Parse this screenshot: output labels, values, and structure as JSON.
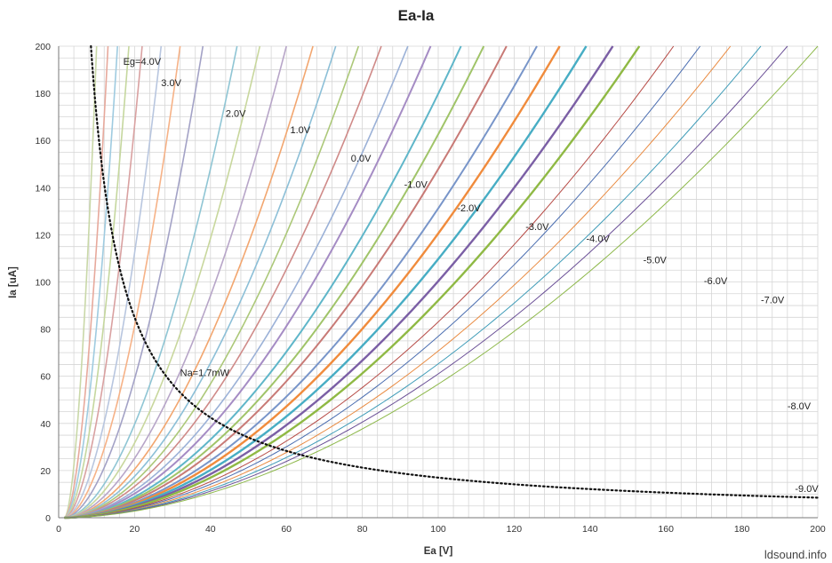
{
  "chart_data": {
    "type": "line",
    "title": "Ea-Ia",
    "xlabel": "Ea [V]",
    "ylabel": "Ia [uA]",
    "xlim": [
      0,
      200
    ],
    "ylim": [
      0,
      200
    ],
    "xticks": [
      0,
      20,
      40,
      60,
      80,
      100,
      120,
      140,
      160,
      180,
      200
    ],
    "yticks": [
      0,
      20,
      40,
      60,
      80,
      100,
      120,
      140,
      160,
      180,
      200
    ],
    "x_minor_step": 4,
    "y_minor_step": 5,
    "grid": true,
    "legend": "none",
    "curve_shape": {
      "exponent": 1.8,
      "onset_offset_v": 1.5
    },
    "series": [
      {
        "eg": 5.5,
        "color": "#c9d8a8",
        "width": 1.6,
        "x_at_200": 10
      },
      {
        "eg": 5.0,
        "color": "#e7a99c",
        "width": 1.6,
        "x_at_200": 13
      },
      {
        "eg": 4.5,
        "color": "#9fcbe0",
        "width": 1.6,
        "x_at_200": 15.5
      },
      {
        "eg": 4.0,
        "color": "#c5d79e",
        "width": 1.6,
        "x_at_200": 18.5
      },
      {
        "eg": 3.5,
        "color": "#d9a1a1",
        "width": 1.6,
        "x_at_200": 22
      },
      {
        "eg": 3.0,
        "color": "#b8c6df",
        "width": 1.6,
        "x_at_200": 27
      },
      {
        "eg": 2.5,
        "color": "#f6b287",
        "width": 1.6,
        "x_at_200": 32
      },
      {
        "eg": 2.0,
        "color": "#a3a2c6",
        "width": 1.6,
        "x_at_200": 38
      },
      {
        "eg": 1.5,
        "color": "#8fc5d4",
        "width": 1.6,
        "x_at_200": 47
      },
      {
        "eg": 1.0,
        "color": "#c8d79d",
        "width": 1.6,
        "x_at_200": 53
      },
      {
        "eg": 0.5,
        "color": "#b7a5c8",
        "width": 1.6,
        "x_at_200": 60
      },
      {
        "eg": 0.0,
        "color": "#f2a66f",
        "width": 1.6,
        "x_at_200": 67
      },
      {
        "eg": -0.5,
        "color": "#8cbfd7",
        "width": 1.6,
        "x_at_200": 73
      },
      {
        "eg": -1.0,
        "color": "#acc879",
        "width": 1.6,
        "x_at_200": 79
      },
      {
        "eg": -1.5,
        "color": "#cf8a88",
        "width": 1.6,
        "x_at_200": 85
      },
      {
        "eg": -2.0,
        "color": "#9bb1d7",
        "width": 1.6,
        "x_at_200": 92
      },
      {
        "eg": -2.5,
        "color": "#a58cc4",
        "width": 2.0,
        "x_at_200": 98
      },
      {
        "eg": -3.0,
        "color": "#5fb6c9",
        "width": 2.0,
        "x_at_200": 106
      },
      {
        "eg": -3.5,
        "color": "#a0c469",
        "width": 2.0,
        "x_at_200": 112
      },
      {
        "eg": -4.0,
        "color": "#c87a76",
        "width": 2.0,
        "x_at_200": 118
      },
      {
        "eg": -4.5,
        "color": "#7895c9",
        "width": 2.0,
        "x_at_200": 126
      },
      {
        "eg": -5.0,
        "color": "#f08b3c",
        "width": 2.4,
        "x_at_200": 132
      },
      {
        "eg": -5.5,
        "color": "#47adc4",
        "width": 2.4,
        "x_at_200": 139
      },
      {
        "eg": -6.0,
        "color": "#7b5fa5",
        "width": 2.4,
        "x_at_200": 146
      },
      {
        "eg": -6.5,
        "color": "#8fb944",
        "width": 2.4,
        "x_at_200": 153
      },
      {
        "eg": -7.0,
        "color": "#b64a45",
        "width": 1.0,
        "x_at_200": 162
      },
      {
        "eg": -7.5,
        "color": "#4a6db0",
        "width": 1.0,
        "x_at_200": 169
      },
      {
        "eg": -8.0,
        "color": "#e98a40",
        "width": 1.0,
        "x_at_200": 177
      },
      {
        "eg": -8.5,
        "color": "#3f9cb8",
        "width": 1.0,
        "x_at_200": 185
      },
      {
        "eg": -9.0,
        "color": "#6a4f96",
        "width": 1.0,
        "x_at_200": 192
      },
      {
        "eg": -9.5,
        "color": "#8db84a",
        "width": 1.0,
        "x_at_200": 200
      }
    ],
    "power_curve": {
      "name": "Na=1.7mW",
      "power_mw": 1.7,
      "x_start": 8.5,
      "x_end": 200
    },
    "annotations": [
      {
        "text": "Eg=4.0V",
        "x": 17,
        "y": 192
      },
      {
        "text": "3.0V",
        "x": 27,
        "y": 183
      },
      {
        "text": "2.0V",
        "x": 44,
        "y": 170
      },
      {
        "text": "1.0V",
        "x": 61,
        "y": 163
      },
      {
        "text": "0.0V",
        "x": 77,
        "y": 151
      },
      {
        "text": "-1.0V",
        "x": 91,
        "y": 140
      },
      {
        "text": "-2.0V",
        "x": 105,
        "y": 130
      },
      {
        "text": "-3.0V",
        "x": 123,
        "y": 122
      },
      {
        "text": "-4.0V",
        "x": 139,
        "y": 117
      },
      {
        "text": "-5.0V",
        "x": 154,
        "y": 108
      },
      {
        "text": "-6.0V",
        "x": 170,
        "y": 99
      },
      {
        "text": "-7.0V",
        "x": 185,
        "y": 91
      },
      {
        "text": "-8.0V",
        "x": 192,
        "y": 46
      },
      {
        "text": "-9.0V",
        "x": 194,
        "y": 11
      },
      {
        "text": "Na=1.7mW",
        "x": 32,
        "y": 60
      }
    ]
  },
  "watermark": "ldsound.info"
}
